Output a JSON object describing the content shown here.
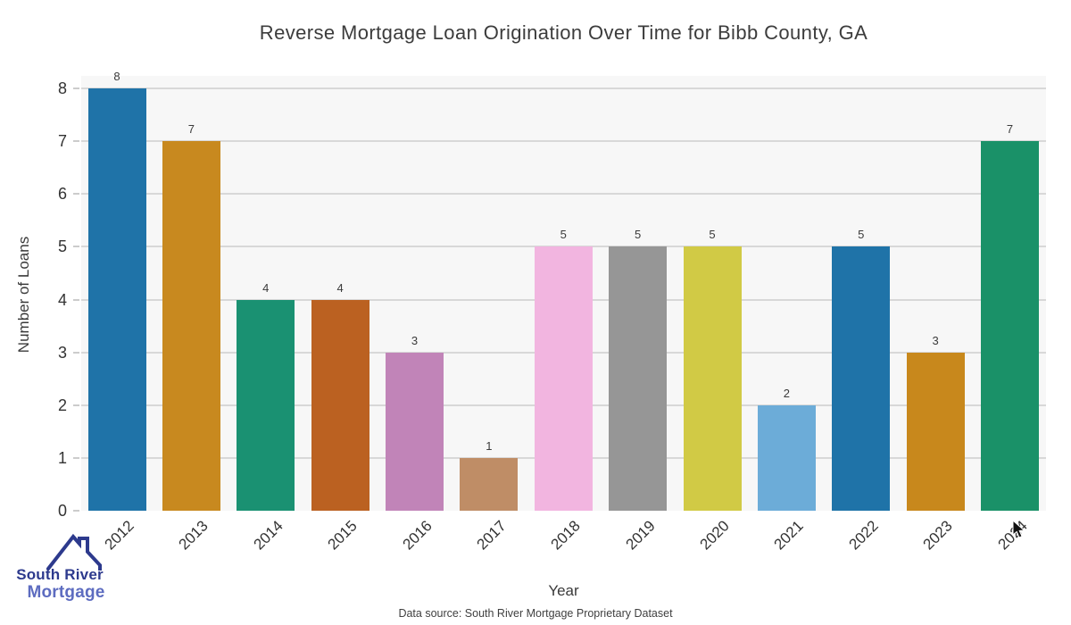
{
  "chart_data": {
    "type": "bar",
    "title": "Reverse Mortgage Loan Origination Over Time for Bibb County, GA",
    "xlabel": "Year",
    "ylabel": "Number of Loans",
    "categories": [
      "2012",
      "2013",
      "2014",
      "2015",
      "2016",
      "2017",
      "2018",
      "2019",
      "2020",
      "2021",
      "2022",
      "2023",
      "2024"
    ],
    "values": [
      8,
      7,
      4,
      4,
      3,
      1,
      5,
      5,
      5,
      2,
      5,
      3,
      7
    ],
    "bar_colors": [
      "#1f73a8",
      "#c8891f",
      "#1a9172",
      "#bb6121",
      "#c184b8",
      "#bf8d66",
      "#f2b5e0",
      "#969696",
      "#d1ca45",
      "#6cacd8",
      "#1f73a8",
      "#c8881c",
      "#1a9168"
    ],
    "ylim": [
      0,
      8
    ],
    "yticks": [
      0,
      1,
      2,
      3,
      4,
      5,
      6,
      7,
      8
    ],
    "grid": true,
    "legend": false,
    "value_labels": true
  },
  "footer": {
    "data_source": "Data source: South River Mortgage Proprietary Dataset"
  },
  "logo": {
    "line1": "South River",
    "line2": "Mortgage",
    "icon": "house-roof-icon"
  },
  "colors": {
    "plot_background": "#f7f7f7",
    "gridline": "#d8d8d8",
    "axis_text": "#333333",
    "title_text": "#3c3c3c",
    "logo_navy": "#2d3a8d",
    "logo_periwinkle": "#5d6cc0"
  }
}
